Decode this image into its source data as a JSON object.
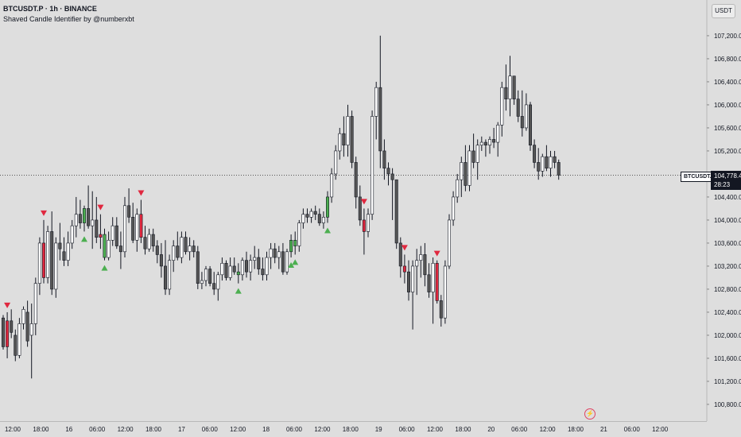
{
  "header": {
    "title": "BTCUSDT.P · 1h · BINANCE",
    "subtitle": "Shaved Candle Identifier by @numberxbt"
  },
  "currency_button": "USDT",
  "price_tag": {
    "symbol": "BTCUSDT.P",
    "price": "104,778.4",
    "countdown": "28:23"
  },
  "icons": {
    "events": "lightning-icon"
  },
  "colors": {
    "background": "#dedede",
    "up_candle": "#ffffff",
    "down_candle": "#555555",
    "shaved_bull": "#4caf50",
    "shaved_bear": "#e0283f",
    "marker_up": "#4caf50",
    "marker_down": "#e0283f"
  },
  "chart_data": {
    "type": "candlestick",
    "timeframe": "1h",
    "ylim": [
      100700,
      107500
    ],
    "y_ticks": [
      "107,200.0",
      "106,800.0",
      "106,400.0",
      "106,000.0",
      "105,600.0",
      "105,200.0",
      "104,800.0",
      "104,400.0",
      "104,000.0",
      "103,600.0",
      "103,200.0",
      "102,800.0",
      "102,400.0",
      "102,000.0",
      "101,600.0",
      "101,200.0",
      "100,800.0"
    ],
    "x_ticks": [
      "12:00",
      "18:00",
      "16",
      "06:00",
      "12:00",
      "18:00",
      "17",
      "06:00",
      "12:00",
      "18",
      "06:00",
      "12:00",
      "18:00",
      "19",
      "06:00",
      "12:00",
      "18:00",
      "20",
      "06:00",
      "12:00",
      "18:00",
      "21",
      "06:00",
      "12:00"
    ],
    "last_price": 104778.4,
    "candles": [
      [
        102300,
        102350,
        101750,
        101800
      ],
      [
        101800,
        102400,
        101600,
        102250
      ],
      [
        102250,
        102450,
        101950,
        102050
      ],
      [
        102000,
        102100,
        101550,
        101650
      ],
      [
        101650,
        102300,
        101600,
        102200
      ],
      [
        102200,
        102500,
        102100,
        102450
      ],
      [
        102400,
        102600,
        101800,
        101900
      ],
      [
        102000,
        102550,
        101250,
        102200
      ],
      [
        102200,
        103000,
        102000,
        102900
      ],
      [
        102900,
        103700,
        102700,
        103600
      ],
      [
        103600,
        104000,
        102900,
        103000
      ],
      [
        103000,
        103900,
        102900,
        103800
      ],
      [
        103800,
        104150,
        102700,
        102800
      ],
      [
        102800,
        103700,
        102650,
        103600
      ],
      [
        103600,
        103950,
        103300,
        103500
      ],
      [
        103450,
        103700,
        103200,
        103300
      ],
      [
        103300,
        103800,
        103200,
        103600
      ],
      [
        103600,
        104000,
        103500,
        103900
      ],
      [
        103900,
        104400,
        103700,
        104100
      ],
      [
        104100,
        104350,
        103850,
        103950
      ],
      [
        103950,
        104250,
        103800,
        104200
      ],
      [
        104200,
        104600,
        103850,
        103900
      ],
      [
        103900,
        104500,
        103500,
        104000
      ],
      [
        104000,
        104400,
        103600,
        103700
      ],
      [
        103700,
        104100,
        103500,
        103750
      ],
      [
        103750,
        103850,
        103300,
        103350
      ],
      [
        103350,
        103800,
        103300,
        103650
      ],
      [
        103650,
        104050,
        103550,
        103900
      ],
      [
        103900,
        104050,
        103500,
        103550
      ],
      [
        103550,
        103800,
        103150,
        103450
      ],
      [
        103450,
        104400,
        103350,
        104250
      ],
      [
        104250,
        104550,
        103950,
        104050
      ],
      [
        104050,
        104300,
        103600,
        103650
      ],
      [
        103650,
        104200,
        103450,
        104100
      ],
      [
        104100,
        104350,
        103600,
        103700
      ],
      [
        103700,
        103900,
        103400,
        103500
      ],
      [
        103500,
        103850,
        103450,
        103750
      ],
      [
        103750,
        103850,
        103450,
        103550
      ],
      [
        103550,
        103650,
        103250,
        103400
      ],
      [
        103400,
        103600,
        103000,
        103200
      ],
      [
        103200,
        103650,
        102700,
        102800
      ],
      [
        102800,
        103400,
        102700,
        103300
      ],
      [
        103300,
        103650,
        103100,
        103550
      ],
      [
        103550,
        103800,
        103300,
        103350
      ],
      [
        103350,
        103800,
        103250,
        103700
      ],
      [
        103700,
        103800,
        103400,
        103450
      ],
      [
        103450,
        103700,
        103300,
        103550
      ],
      [
        103550,
        103650,
        103350,
        103450
      ],
      [
        103450,
        103550,
        102800,
        102900
      ],
      [
        102900,
        103100,
        102800,
        102950
      ],
      [
        102950,
        103200,
        102850,
        103150
      ],
      [
        103150,
        103200,
        102850,
        102900
      ],
      [
        102900,
        103100,
        102700,
        102800
      ],
      [
        102800,
        103100,
        102600,
        103050
      ],
      [
        103050,
        103350,
        102950,
        103250
      ],
      [
        103250,
        103300,
        102950,
        103000
      ],
      [
        103000,
        103350,
        102950,
        103200
      ],
      [
        103200,
        103350,
        103050,
        103100
      ],
      [
        103100,
        103250,
        102900,
        103050
      ],
      [
        103050,
        103350,
        102950,
        103300
      ],
      [
        103300,
        103450,
        103000,
        103100
      ],
      [
        103100,
        103400,
        102950,
        103300
      ],
      [
        103300,
        103550,
        103150,
        103350
      ],
      [
        103350,
        103500,
        103050,
        103150
      ],
      [
        103150,
        103350,
        102950,
        103050
      ],
      [
        103050,
        103450,
        102950,
        103350
      ],
      [
        103350,
        103600,
        103150,
        103500
      ],
      [
        103500,
        103600,
        103250,
        103350
      ],
      [
        103350,
        103550,
        103150,
        103450
      ],
      [
        103450,
        103600,
        103050,
        103100
      ],
      [
        103100,
        103500,
        103050,
        103450
      ],
      [
        103450,
        103750,
        103350,
        103650
      ],
      [
        103650,
        103800,
        103400,
        103550
      ],
      [
        103550,
        104000,
        103450,
        103950
      ],
      [
        103950,
        104200,
        103850,
        104100
      ],
      [
        104100,
        104200,
        103950,
        104050
      ],
      [
        104050,
        104200,
        103950,
        104150
      ],
      [
        104150,
        104250,
        104000,
        104100
      ],
      [
        104100,
        104200,
        103900,
        103950
      ],
      [
        103950,
        104150,
        103850,
        104050
      ],
      [
        104050,
        104500,
        103950,
        104400
      ],
      [
        104400,
        104900,
        104300,
        104800
      ],
      [
        104800,
        105300,
        104700,
        105200
      ],
      [
        105200,
        105600,
        105050,
        105500
      ],
      [
        105500,
        105800,
        105100,
        105300
      ],
      [
        105300,
        106000,
        105100,
        105800
      ],
      [
        105800,
        105900,
        104900,
        105000
      ],
      [
        105000,
        105100,
        104200,
        104400
      ],
      [
        104400,
        104600,
        103900,
        104000
      ],
      [
        104000,
        104200,
        103400,
        103800
      ],
      [
        103800,
        104200,
        103700,
        104100
      ],
      [
        104100,
        105900,
        104000,
        105800
      ],
      [
        105800,
        106400,
        105400,
        106300
      ],
      [
        106300,
        107200,
        104900,
        105200
      ],
      [
        105200,
        105400,
        104700,
        104900
      ],
      [
        104900,
        105000,
        104600,
        104800
      ],
      [
        104800,
        104900,
        104000,
        104700
      ],
      [
        104700,
        104700,
        103500,
        103600
      ],
      [
        103600,
        103700,
        103000,
        103200
      ],
      [
        103200,
        103400,
        102900,
        103100
      ],
      [
        103100,
        103300,
        102600,
        102750
      ],
      [
        102750,
        103300,
        102100,
        103200
      ],
      [
        103200,
        103500,
        102700,
        103300
      ],
      [
        103300,
        103550,
        103000,
        103400
      ],
      [
        103400,
        103600,
        102850,
        103050
      ],
      [
        103050,
        103250,
        102650,
        102750
      ],
      [
        102750,
        103350,
        102200,
        103250
      ],
      [
        103250,
        103300,
        102550,
        102600
      ],
      [
        102600,
        102700,
        102150,
        102300
      ],
      [
        102300,
        103300,
        102200,
        103200
      ],
      [
        103200,
        104100,
        103150,
        104000
      ],
      [
        104000,
        104500,
        103900,
        104400
      ],
      [
        104400,
        104800,
        104300,
        104700
      ],
      [
        104700,
        105100,
        104400,
        105000
      ],
      [
        105000,
        105300,
        104500,
        104600
      ],
      [
        104600,
        105300,
        104500,
        105200
      ],
      [
        105200,
        105500,
        104900,
        105000
      ],
      [
        105000,
        105400,
        104700,
        105300
      ],
      [
        105300,
        105450,
        105200,
        105350
      ],
      [
        105350,
        105400,
        105100,
        105300
      ],
      [
        105300,
        105450,
        105150,
        105400
      ],
      [
        105400,
        105600,
        105250,
        105350
      ],
      [
        105350,
        105700,
        105100,
        105650
      ],
      [
        105650,
        106400,
        105450,
        106300
      ],
      [
        106300,
        106700,
        105900,
        106100
      ],
      [
        106100,
        106850,
        105800,
        106500
      ],
      [
        106500,
        106500,
        106000,
        106100
      ],
      [
        106100,
        106250,
        105700,
        105800
      ],
      [
        105800,
        106250,
        105450,
        105600
      ],
      [
        105600,
        106200,
        105550,
        106000
      ],
      [
        106000,
        106050,
        105200,
        105300
      ],
      [
        105300,
        105400,
        104900,
        105000
      ],
      [
        105000,
        105250,
        104700,
        104850
      ],
      [
        104850,
        105150,
        104750,
        105100
      ],
      [
        105100,
        105300,
        104850,
        104900
      ],
      [
        104900,
        105200,
        104750,
        105100
      ],
      [
        105100,
        105200,
        104900,
        105000
      ],
      [
        105000,
        105050,
        104700,
        104778
      ]
    ],
    "shaved": [
      {
        "index": 1,
        "kind": "bear"
      },
      {
        "index": 10,
        "kind": "bear"
      },
      {
        "index": 20,
        "kind": "bull"
      },
      {
        "index": 24,
        "kind": "bear"
      },
      {
        "index": 25,
        "kind": "bull"
      },
      {
        "index": 34,
        "kind": "bear"
      },
      {
        "index": 58,
        "kind": "bull"
      },
      {
        "index": 71,
        "kind": "bull"
      },
      {
        "index": 72,
        "kind": "bull"
      },
      {
        "index": 80,
        "kind": "bull"
      },
      {
        "index": 89,
        "kind": "bear"
      },
      {
        "index": 99,
        "kind": "bear"
      },
      {
        "index": 107,
        "kind": "bear"
      }
    ]
  }
}
